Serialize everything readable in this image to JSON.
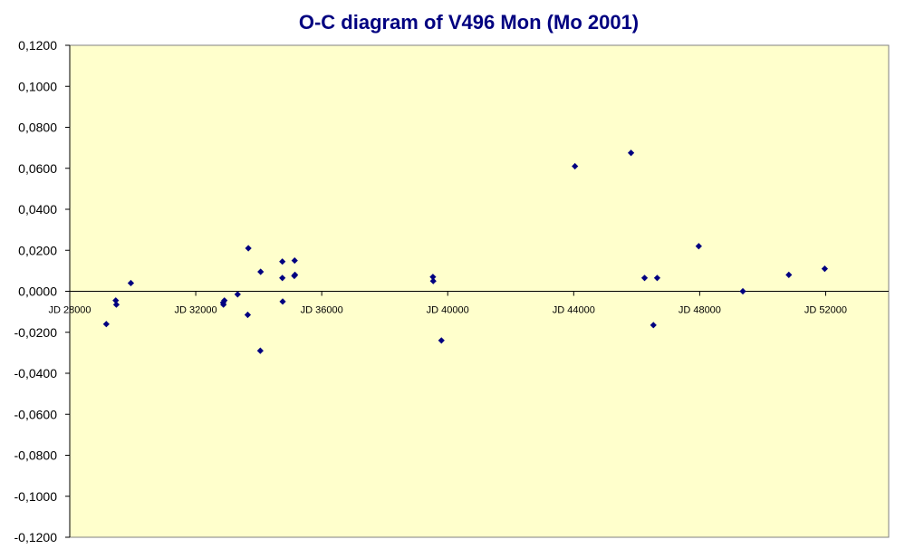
{
  "chart_data": {
    "type": "scatter",
    "title": "O-C diagram of V496 Mon  (Mo 2001)",
    "xlabel": "",
    "ylabel": "",
    "xlim": [
      28000,
      54000
    ],
    "ylim": [
      -0.12,
      0.12
    ],
    "xticks": [
      28000,
      32000,
      36000,
      40000,
      44000,
      48000,
      52000
    ],
    "xtick_labels": [
      "JD 28000",
      "JD 32000",
      "JD 36000",
      "JD 40000",
      "JD 44000",
      "JD 48000",
      "JD 52000"
    ],
    "yticks": [
      0.12,
      0.1,
      0.08,
      0.06,
      0.04,
      0.02,
      0.0,
      -0.02,
      -0.04,
      -0.06,
      -0.08,
      -0.1,
      -0.12
    ],
    "ytick_labels": [
      "0,1200",
      "0,1000",
      "0,0800",
      "0,0600",
      "0,0400",
      "0,0200",
      "0,0000",
      "-0,0200",
      "-0,0400",
      "-0,0600",
      "-0,0800",
      "-0,1000",
      "-0,1200"
    ],
    "grid": false,
    "legend": "none",
    "colors": {
      "plot_bg": "#FFFFCC",
      "marker": "#000080",
      "title": "#000080",
      "axis": "#000000"
    },
    "series": [
      {
        "points": [
          [
            29160,
            -0.016
          ],
          [
            29460,
            -0.0045
          ],
          [
            29480,
            -0.0065
          ],
          [
            29940,
            0.004
          ],
          [
            32870,
            -0.0055
          ],
          [
            32910,
            -0.0045
          ],
          [
            32880,
            -0.0065
          ],
          [
            33330,
            -0.0015
          ],
          [
            33670,
            0.021
          ],
          [
            33650,
            -0.0115
          ],
          [
            34060,
            0.0095
          ],
          [
            34050,
            -0.029
          ],
          [
            34750,
            0.0145
          ],
          [
            34750,
            0.0065
          ],
          [
            34760,
            -0.005
          ],
          [
            35140,
            0.015
          ],
          [
            35130,
            0.0075
          ],
          [
            35150,
            0.008
          ],
          [
            39530,
            0.007
          ],
          [
            39540,
            0.005
          ],
          [
            39800,
            -0.024
          ],
          [
            44040,
            0.061
          ],
          [
            45820,
            0.0675
          ],
          [
            46250,
            0.0065
          ],
          [
            46530,
            -0.0165
          ],
          [
            46650,
            0.0065
          ],
          [
            47970,
            0.022
          ],
          [
            49370,
            0.0
          ],
          [
            50830,
            0.008
          ],
          [
            51970,
            0.011
          ]
        ]
      }
    ]
  }
}
